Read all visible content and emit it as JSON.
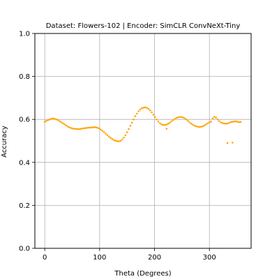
{
  "chart_data": {
    "type": "scatter",
    "title": "Dataset: Flowers-102 | Encoder: SimCLR ConvNeXt-Tiny",
    "xlabel": "Theta (Degrees)",
    "ylabel": "Accuracy",
    "xlim": [
      -18,
      376
    ],
    "ylim": [
      0.0,
      1.0
    ],
    "xticks": [
      0,
      100,
      200,
      300
    ],
    "yticks": [
      0.0,
      0.2,
      0.4,
      0.6,
      0.8,
      1.0
    ],
    "xtick_labels": [
      "0",
      "100",
      "200",
      "300"
    ],
    "ytick_labels": [
      "0.0",
      "0.2",
      "0.4",
      "0.6",
      "0.8",
      "1.0"
    ],
    "grid": true,
    "legend": "none",
    "colors": {
      "points": "#ffa500",
      "grid": "#b0b0b0",
      "axes": "#000000"
    },
    "x": [
      0,
      3,
      6,
      9,
      12,
      15,
      18,
      21,
      24,
      27,
      30,
      33,
      36,
      39,
      42,
      45,
      48,
      51,
      54,
      57,
      60,
      63,
      66,
      69,
      72,
      75,
      78,
      81,
      84,
      87,
      90,
      93,
      96,
      99,
      102,
      105,
      108,
      111,
      114,
      117,
      120,
      123,
      126,
      129,
      132,
      135,
      138,
      141,
      144,
      147,
      150,
      153,
      156,
      159,
      162,
      165,
      168,
      171,
      174,
      177,
      180,
      183,
      186,
      189,
      192,
      195,
      198,
      201,
      204,
      207,
      210,
      213,
      216,
      219,
      222,
      225,
      228,
      231,
      234,
      237,
      240,
      243,
      246,
      249,
      252,
      255,
      258,
      261,
      264,
      267,
      270,
      273,
      276,
      279,
      282,
      285,
      288,
      291,
      294,
      297,
      300,
      303,
      306,
      309,
      312,
      315,
      318,
      321,
      324,
      327,
      330,
      333,
      336,
      339,
      342,
      345,
      348,
      351,
      354,
      357,
      222,
      333,
      342
    ],
    "y": [
      0.589,
      0.593,
      0.597,
      0.6,
      0.603,
      0.605,
      0.603,
      0.6,
      0.597,
      0.592,
      0.587,
      0.582,
      0.577,
      0.572,
      0.567,
      0.563,
      0.56,
      0.558,
      0.556,
      0.556,
      0.555,
      0.555,
      0.556,
      0.558,
      0.559,
      0.56,
      0.561,
      0.562,
      0.562,
      0.563,
      0.564,
      0.563,
      0.561,
      0.558,
      0.553,
      0.547,
      0.541,
      0.534,
      0.527,
      0.52,
      0.514,
      0.509,
      0.504,
      0.501,
      0.499,
      0.498,
      0.5,
      0.506,
      0.515,
      0.526,
      0.54,
      0.555,
      0.57,
      0.585,
      0.6,
      0.615,
      0.627,
      0.638,
      0.646,
      0.652,
      0.655,
      0.656,
      0.654,
      0.649,
      0.642,
      0.633,
      0.622,
      0.611,
      0.6,
      0.59,
      0.582,
      0.577,
      0.574,
      0.574,
      0.576,
      0.58,
      0.585,
      0.591,
      0.597,
      0.603,
      0.607,
      0.61,
      0.611,
      0.611,
      0.609,
      0.605,
      0.6,
      0.593,
      0.586,
      0.58,
      0.575,
      0.571,
      0.568,
      0.566,
      0.565,
      0.566,
      0.568,
      0.572,
      0.577,
      0.582,
      0.587,
      0.59,
      0.604,
      0.612,
      0.609,
      0.6,
      0.592,
      0.586,
      0.583,
      0.581,
      0.58,
      0.581,
      0.584,
      0.588,
      0.589,
      0.59,
      0.591,
      0.589,
      0.587,
      0.588,
      0.557,
      0.49,
      0.492
    ]
  }
}
